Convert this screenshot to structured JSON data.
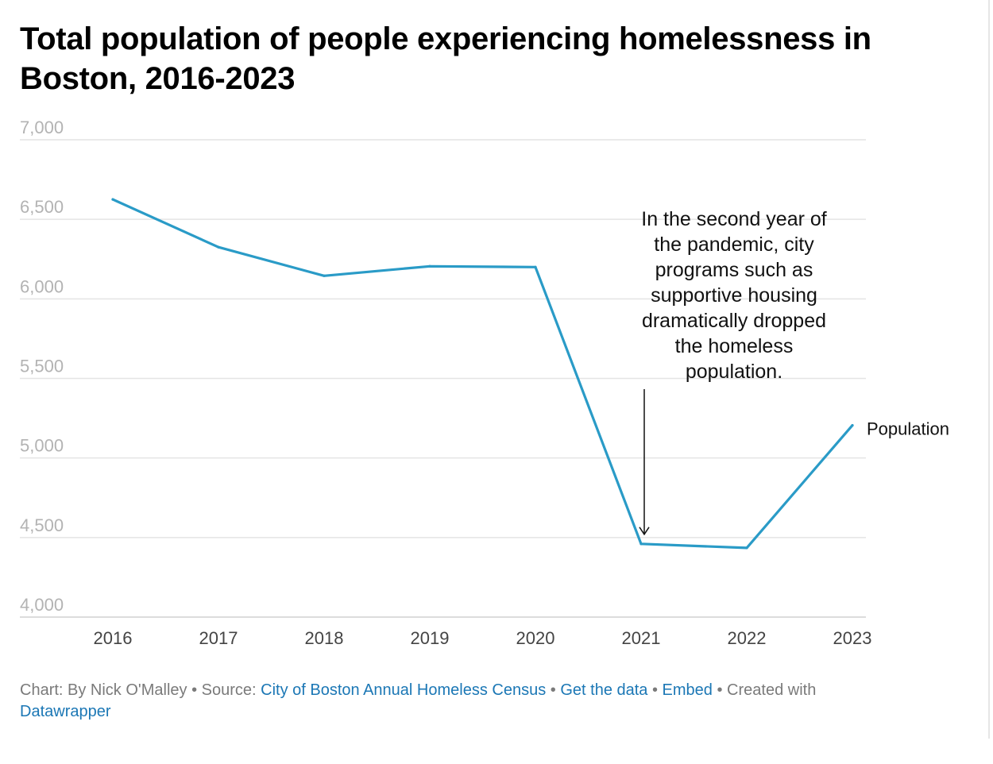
{
  "title": "Total population of people experiencing homelessness in Boston, 2016-2023",
  "chart_data": {
    "type": "line",
    "categories": [
      "2016",
      "2017",
      "2018",
      "2019",
      "2020",
      "2021",
      "2022",
      "2023"
    ],
    "series": [
      {
        "name": "Population",
        "color": "#2a9bc7",
        "values": [
          6625,
          6325,
          6145,
          6205,
          6200,
          4460,
          4435,
          5205
        ]
      }
    ],
    "ylim": [
      4000,
      7000
    ],
    "yticks": [
      4000,
      4500,
      5000,
      5500,
      6000,
      6500,
      7000
    ],
    "ytick_labels": [
      "4,000",
      "4,500",
      "5,000",
      "5,500",
      "6,000",
      "6,500",
      "7,000"
    ],
    "grid": true,
    "annotation": {
      "lines": [
        "In the second year of",
        "the pandemic, city",
        "programs such as",
        "supportive housing",
        "dramatically dropped",
        "the homeless",
        "population."
      ],
      "arrow_to": {
        "x": "2021",
        "y": 4460
      }
    }
  },
  "footer": {
    "chart_by": "Chart: By Nick O'Malley",
    "sep": " • ",
    "source_label": "Source: ",
    "source_link": "City of Boston Annual Homeless Census",
    "get_data": "Get the data",
    "embed": "Embed",
    "created_with": "Created with",
    "datawrapper": "Datawrapper"
  }
}
